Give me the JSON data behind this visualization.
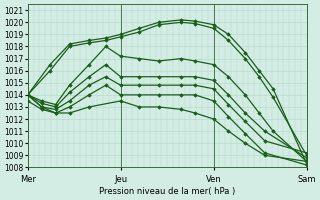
{
  "xlabel": "Pression niveau de la mer( hPa )",
  "ylim": [
    1008,
    1021.5
  ],
  "yticks": [
    1008,
    1009,
    1010,
    1011,
    1012,
    1013,
    1014,
    1015,
    1016,
    1017,
    1018,
    1019,
    1020,
    1021
  ],
  "xtick_labels": [
    "Mer",
    "Jeu",
    "Ven",
    "Sam"
  ],
  "xtick_positions": [
    0.0,
    0.333,
    0.667,
    1.0
  ],
  "background_color": "#d4ede4",
  "grid_color": "#b0d8c8",
  "line_color": "#1a5e1a",
  "lines": [
    {
      "x": [
        0.0,
        0.08,
        0.15,
        0.22,
        0.28,
        0.333,
        0.4,
        0.47,
        0.55,
        0.6,
        0.667,
        0.72,
        0.78,
        0.83,
        0.88,
        1.0
      ],
      "y": [
        1014.0,
        1016.5,
        1018.2,
        1018.5,
        1018.7,
        1019.0,
        1019.5,
        1020.0,
        1020.2,
        1020.1,
        1019.8,
        1019.0,
        1017.5,
        1016.0,
        1014.5,
        1008.3
      ]
    },
    {
      "x": [
        0.0,
        0.08,
        0.15,
        0.22,
        0.28,
        0.333,
        0.4,
        0.47,
        0.55,
        0.6,
        0.667,
        0.72,
        0.78,
        0.83,
        0.88,
        1.0
      ],
      "y": [
        1014.0,
        1016.0,
        1018.0,
        1018.3,
        1018.5,
        1018.8,
        1019.2,
        1019.8,
        1020.0,
        1019.9,
        1019.5,
        1018.5,
        1017.0,
        1015.5,
        1013.8,
        1009.0
      ]
    },
    {
      "x": [
        0.0,
        0.05,
        0.1,
        0.15,
        0.22,
        0.28,
        0.333,
        0.4,
        0.47,
        0.55,
        0.6,
        0.667,
        0.72,
        0.78,
        0.83,
        0.88,
        1.0
      ],
      "y": [
        1014.0,
        1013.5,
        1013.2,
        1014.8,
        1016.5,
        1018.0,
        1017.2,
        1017.0,
        1016.8,
        1017.0,
        1016.8,
        1016.5,
        1015.5,
        1014.0,
        1012.5,
        1011.0,
        1008.5
      ]
    },
    {
      "x": [
        0.0,
        0.05,
        0.1,
        0.15,
        0.22,
        0.28,
        0.333,
        0.4,
        0.47,
        0.55,
        0.6,
        0.667,
        0.72,
        0.78,
        0.85,
        1.0
      ],
      "y": [
        1014.0,
        1013.3,
        1013.0,
        1014.2,
        1015.5,
        1016.5,
        1015.5,
        1015.5,
        1015.5,
        1015.5,
        1015.5,
        1015.2,
        1014.0,
        1012.5,
        1011.0,
        1008.8
      ]
    },
    {
      "x": [
        0.0,
        0.05,
        0.1,
        0.15,
        0.22,
        0.28,
        0.333,
        0.4,
        0.47,
        0.55,
        0.6,
        0.667,
        0.72,
        0.78,
        0.85,
        1.0
      ],
      "y": [
        1014.0,
        1013.0,
        1012.8,
        1013.5,
        1014.8,
        1015.5,
        1014.8,
        1014.8,
        1014.8,
        1014.8,
        1014.8,
        1014.5,
        1013.2,
        1011.8,
        1010.2,
        1009.2
      ]
    },
    {
      "x": [
        0.0,
        0.05,
        0.1,
        0.15,
        0.22,
        0.28,
        0.333,
        0.4,
        0.47,
        0.55,
        0.6,
        0.667,
        0.72,
        0.78,
        0.85,
        1.0
      ],
      "y": [
        1013.5,
        1012.8,
        1012.5,
        1013.0,
        1014.0,
        1014.8,
        1014.0,
        1014.0,
        1014.0,
        1014.0,
        1014.0,
        1013.5,
        1012.2,
        1010.8,
        1009.2,
        1008.2
      ]
    },
    {
      "x": [
        0.0,
        0.05,
        0.1,
        0.15,
        0.22,
        0.333,
        0.4,
        0.47,
        0.55,
        0.6,
        0.667,
        0.72,
        0.78,
        0.85,
        1.0
      ],
      "y": [
        1014.0,
        1013.0,
        1012.5,
        1012.5,
        1013.0,
        1013.5,
        1013.0,
        1013.0,
        1012.8,
        1012.5,
        1012.0,
        1011.0,
        1010.0,
        1009.0,
        1008.5
      ]
    }
  ]
}
